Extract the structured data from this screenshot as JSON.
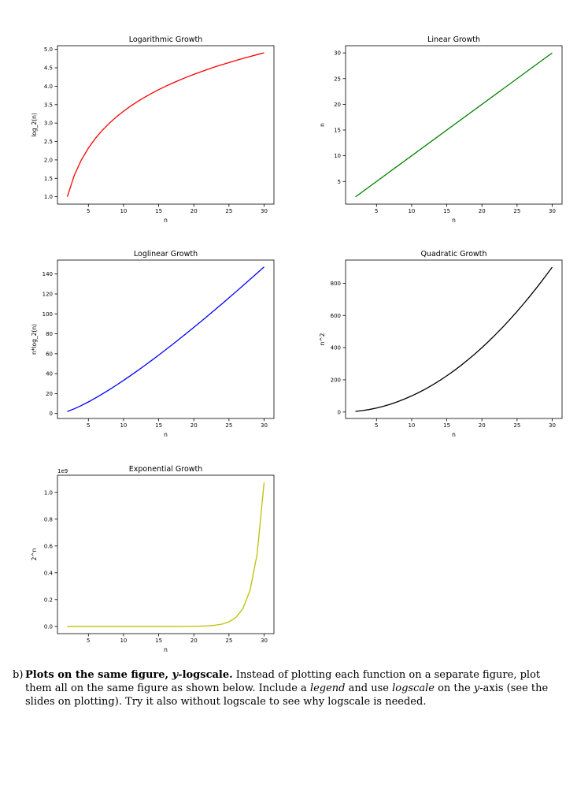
{
  "chart_data": [
    {
      "type": "line",
      "title": "Logarithmic Growth",
      "xlabel": "n",
      "ylabel": "log_2(n)",
      "color": "#ff0000",
      "x": [
        2,
        3,
        4,
        5,
        6,
        7,
        8,
        9,
        10,
        11,
        12,
        13,
        14,
        15,
        16,
        17,
        18,
        19,
        20,
        21,
        22,
        23,
        24,
        25,
        26,
        27,
        28,
        29,
        30
      ],
      "y": [
        1.0,
        1.585,
        2.0,
        2.322,
        2.585,
        2.807,
        3.0,
        3.17,
        3.322,
        3.459,
        3.585,
        3.7,
        3.807,
        3.907,
        4.0,
        4.087,
        4.17,
        4.248,
        4.322,
        4.392,
        4.459,
        4.524,
        4.585,
        4.644,
        4.7,
        4.755,
        4.807,
        4.858,
        4.907
      ],
      "xticks": [
        5,
        10,
        15,
        20,
        25,
        30
      ],
      "yticks": [
        1.0,
        1.5,
        2.0,
        2.5,
        3.0,
        3.5,
        4.0,
        4.5,
        5.0
      ],
      "xtick_labels": [
        "5",
        "10",
        "15",
        "20",
        "25",
        "30"
      ],
      "ytick_labels": [
        "1.0",
        "1.5",
        "2.0",
        "2.5",
        "3.0",
        "3.5",
        "4.0",
        "4.5",
        "5.0"
      ],
      "xlim": [
        0.6,
        31.4
      ],
      "ylim": [
        0.8,
        5.1
      ],
      "grid": false,
      "offset_label": ""
    },
    {
      "type": "line",
      "title": "Linear Growth",
      "xlabel": "n",
      "ylabel": "n",
      "color": "#008000",
      "x": [
        2,
        30
      ],
      "y": [
        2,
        30
      ],
      "xticks": [
        5,
        10,
        15,
        20,
        25,
        30
      ],
      "yticks": [
        5,
        10,
        15,
        20,
        25,
        30
      ],
      "xtick_labels": [
        "5",
        "10",
        "15",
        "20",
        "25",
        "30"
      ],
      "ytick_labels": [
        "5",
        "10",
        "15",
        "20",
        "25",
        "30"
      ],
      "xlim": [
        0.6,
        31.4
      ],
      "ylim": [
        0.6,
        31.4
      ],
      "grid": false,
      "offset_label": ""
    },
    {
      "type": "line",
      "title": "Loglinear Growth",
      "xlabel": "n",
      "ylabel": "n*log_2(n)",
      "color": "#0000ff",
      "x": [
        2,
        3,
        4,
        5,
        6,
        7,
        8,
        9,
        10,
        11,
        12,
        13,
        14,
        15,
        16,
        17,
        18,
        19,
        20,
        21,
        22,
        23,
        24,
        25,
        26,
        27,
        28,
        29,
        30
      ],
      "y": [
        2,
        4.75,
        8,
        11.61,
        15.51,
        19.65,
        24,
        28.53,
        33.22,
        38.05,
        43.02,
        48.11,
        53.3,
        58.6,
        64,
        69.49,
        75.06,
        80.71,
        86.44,
        92.24,
        98.11,
        104.04,
        110.04,
        116.1,
        122.21,
        128.38,
        134.6,
        140.88,
        147.21
      ],
      "xticks": [
        5,
        10,
        15,
        20,
        25,
        30
      ],
      "yticks": [
        0,
        20,
        40,
        60,
        80,
        100,
        120,
        140
      ],
      "xtick_labels": [
        "5",
        "10",
        "15",
        "20",
        "25",
        "30"
      ],
      "ytick_labels": [
        "0",
        "20",
        "40",
        "60",
        "80",
        "100",
        "120",
        "140"
      ],
      "xlim": [
        0.6,
        31.4
      ],
      "ylim": [
        -5,
        154
      ],
      "grid": false,
      "offset_label": ""
    },
    {
      "type": "line",
      "title": "Quadratic Growth",
      "xlabel": "n",
      "ylabel": "n^2",
      "color": "#000000",
      "x": [
        2,
        3,
        4,
        5,
        6,
        7,
        8,
        9,
        10,
        11,
        12,
        13,
        14,
        15,
        16,
        17,
        18,
        19,
        20,
        21,
        22,
        23,
        24,
        25,
        26,
        27,
        28,
        29,
        30
      ],
      "y": [
        4,
        9,
        16,
        25,
        36,
        49,
        64,
        81,
        100,
        121,
        144,
        169,
        196,
        225,
        256,
        289,
        324,
        361,
        400,
        441,
        484,
        529,
        576,
        625,
        676,
        729,
        784,
        841,
        900
      ],
      "xticks": [
        5,
        10,
        15,
        20,
        25,
        30
      ],
      "yticks": [
        0,
        200,
        400,
        600,
        800
      ],
      "xtick_labels": [
        "5",
        "10",
        "15",
        "20",
        "25",
        "30"
      ],
      "ytick_labels": [
        "0",
        "200",
        "400",
        "600",
        "800"
      ],
      "xlim": [
        0.6,
        31.4
      ],
      "ylim": [
        -40,
        944
      ],
      "grid": false,
      "offset_label": ""
    },
    {
      "type": "line",
      "title": "Exponential Growth",
      "xlabel": "n",
      "ylabel": "2^n",
      "color": "#bfbf00",
      "x": [
        2,
        3,
        4,
        5,
        6,
        7,
        8,
        9,
        10,
        11,
        12,
        13,
        14,
        15,
        16,
        17,
        18,
        19,
        20,
        21,
        22,
        23,
        24,
        25,
        26,
        27,
        28,
        29,
        30
      ],
      "y": [
        4e-09,
        8e-09,
        1.6e-08,
        3.2e-08,
        6.4e-08,
        1.28e-07,
        2.56e-07,
        5.12e-07,
        1.024e-06,
        2.048e-06,
        4.096e-06,
        8.192e-06,
        1.6384e-05,
        3.2768e-05,
        6.5536e-05,
        0.000131,
        0.000262,
        0.000524,
        0.001049,
        0.002097,
        0.004194,
        0.008389,
        0.016777,
        0.033554,
        0.067109,
        0.134218,
        0.268435,
        0.536871,
        1.073742
      ],
      "xticks": [
        5,
        10,
        15,
        20,
        25,
        30
      ],
      "yticks": [
        0.0,
        0.2,
        0.4,
        0.6,
        0.8,
        1.0
      ],
      "xtick_labels": [
        "5",
        "10",
        "15",
        "20",
        "25",
        "30"
      ],
      "ytick_labels": [
        "0.0",
        "0.2",
        "0.4",
        "0.6",
        "0.8",
        "1.0"
      ],
      "xlim": [
        0.6,
        31.4
      ],
      "ylim": [
        -0.054,
        1.128
      ],
      "grid": false,
      "offset_label": "1e9"
    }
  ],
  "instructions": {
    "label": "b)",
    "heading_pre": "Plots on the same figure, ",
    "heading_var": "y",
    "heading_post": "-logscale.",
    "text1": " Instead of plotting each function on a separate figure, plot them all on the same figure as shown below. Include a ",
    "em_legend": "legend",
    "text2": " and use ",
    "em_logscale": "logscale",
    "text3": " on the ",
    "em_y": "y",
    "text4": "-axis (see the slides on plotting). Try it also without logscale to see why logscale is needed."
  }
}
